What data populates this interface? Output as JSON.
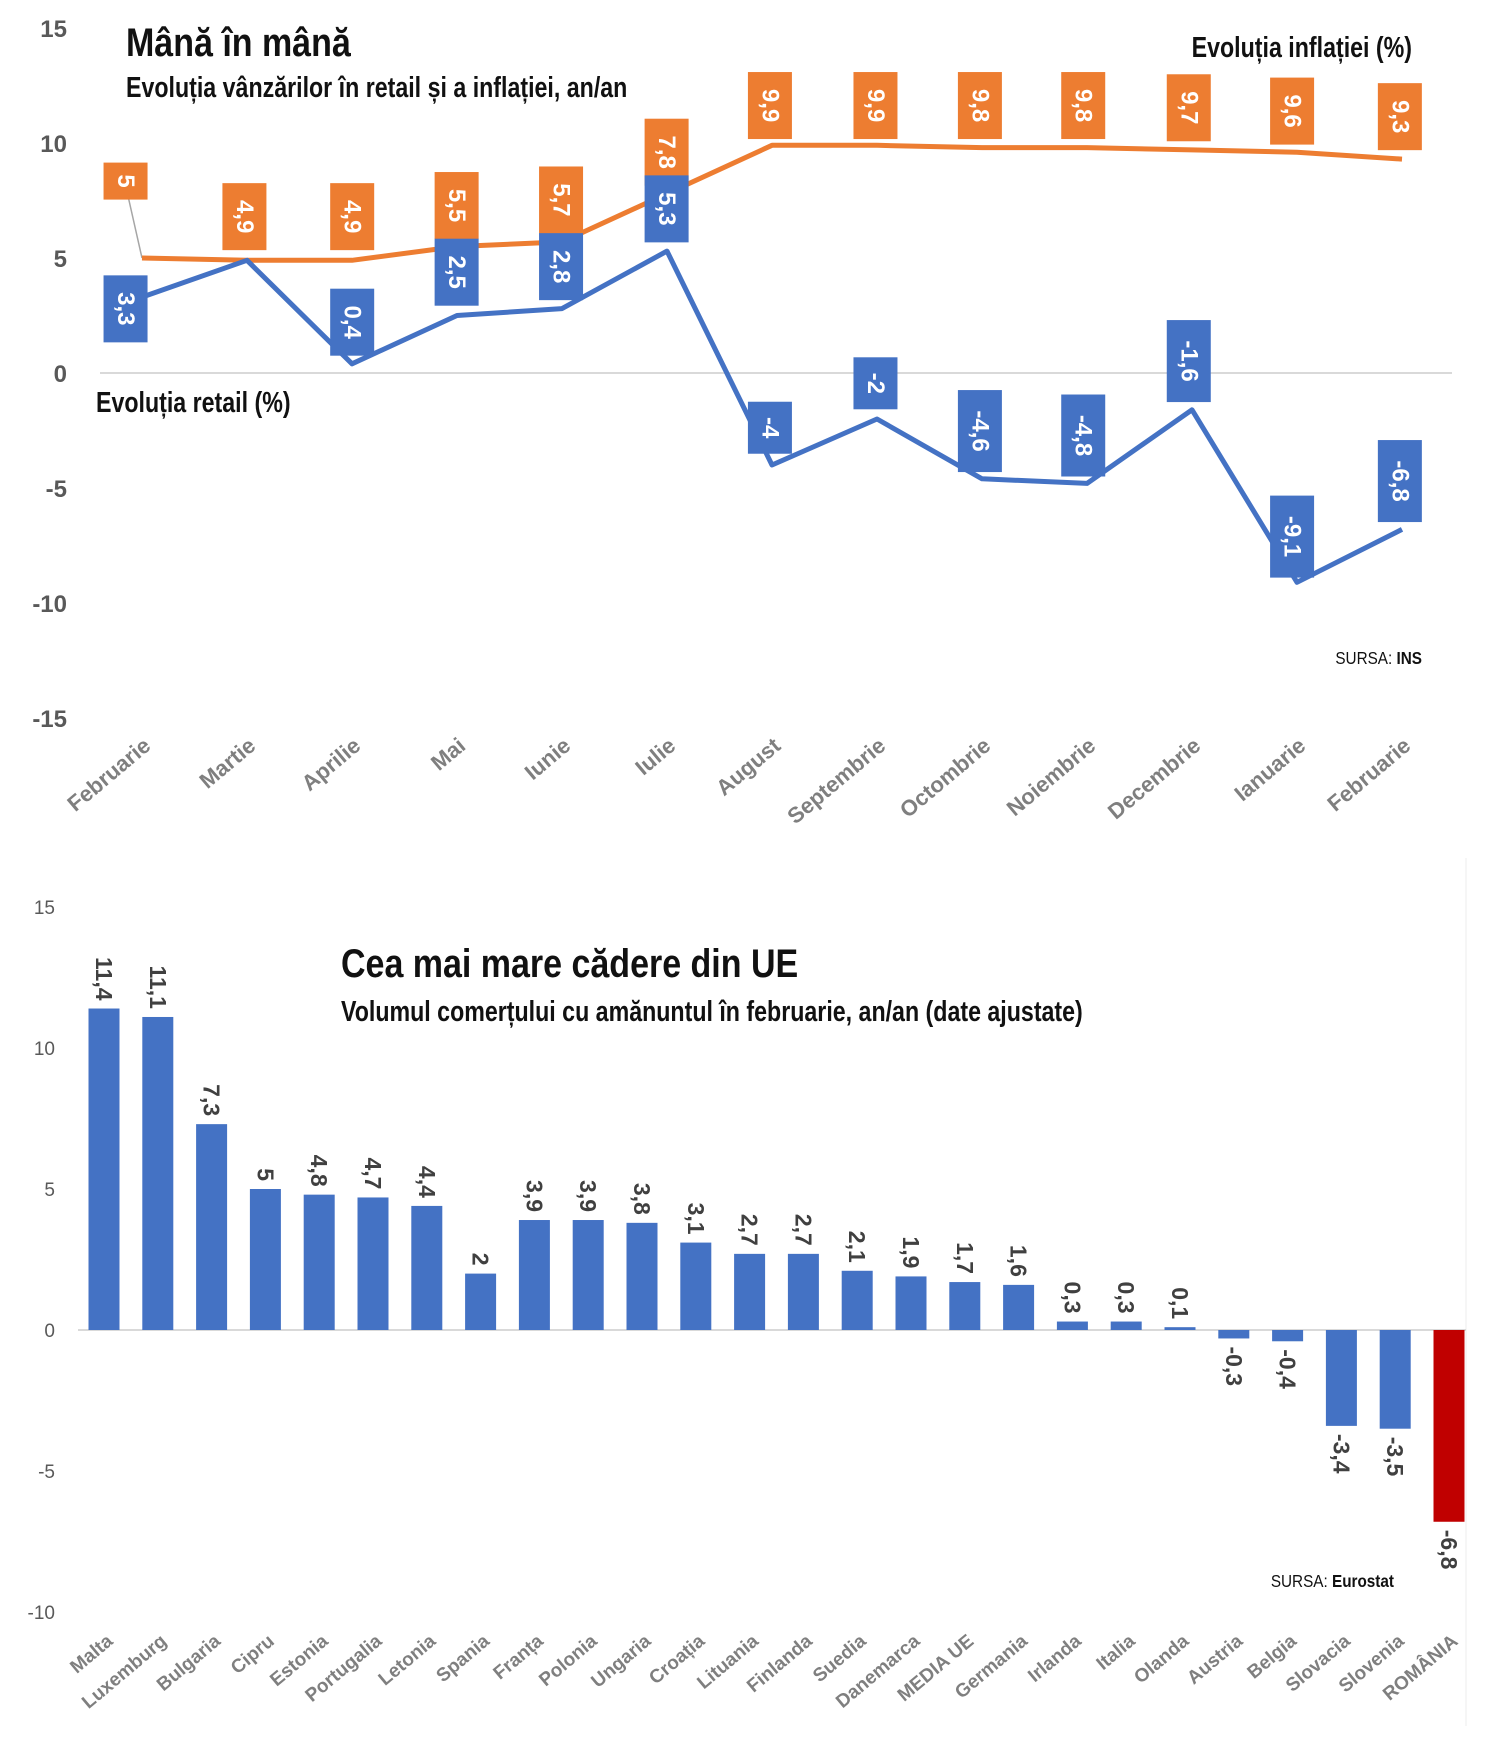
{
  "chart_data": [
    {
      "type": "line",
      "title": "Mână în mână",
      "subtitle": "Evoluția vânzărilor în retail și a inflației, an/an",
      "source_label": "SURSA:",
      "source": "INS",
      "categories": [
        "Februarie",
        "Martie",
        "Aprilie",
        "Mai",
        "Iunie",
        "Iulie",
        "August",
        "Septembrie",
        "Octombrie",
        "Noiembrie",
        "Decembrie",
        "Ianuarie",
        "Februarie"
      ],
      "ylim": [
        -15,
        15
      ],
      "yticks": [
        "15",
        "10",
        "5",
        "0",
        "-5",
        "-10",
        "-15"
      ],
      "grid": false,
      "series": [
        {
          "name": "Evoluția inflației (%)",
          "color": "#ED7D31",
          "values": [
            5,
            4.9,
            4.9,
            5.5,
            5.7,
            7.8,
            9.9,
            9.9,
            9.8,
            9.8,
            9.7,
            9.6,
            9.3
          ],
          "labels": [
            "5",
            "4,9",
            "4,9",
            "5,5",
            "5,7",
            "7,8",
            "9,9",
            "9,9",
            "9,8",
            "9,8",
            "9,7",
            "9,6",
            "9,3"
          ]
        },
        {
          "name": "Evoluția retail (%)",
          "color": "#4472C4",
          "values": [
            3.3,
            4.9,
            0.4,
            2.5,
            2.8,
            5.3,
            -4,
            -2,
            -4.6,
            -4.8,
            -1.6,
            -9.1,
            -6.8
          ],
          "labels": [
            "3,3",
            "",
            "0,4",
            "2,5",
            "2,8",
            "5,3",
            "-4",
            "-2",
            "-4,6",
            "-4,8",
            "-1,6",
            "-9,1",
            "-6,8"
          ]
        }
      ]
    },
    {
      "type": "bar",
      "title": "Cea mai mare cădere din UE",
      "subtitle": "Volumul comerțului cu amănuntul în februarie, an/an (date ajustate)",
      "source_label": "SURSA:",
      "source": "Eurostat",
      "categories": [
        "Malta",
        "Luxemburg",
        "Bulgaria",
        "Cipru",
        "Estonia",
        "Portugalia",
        "Letonia",
        "Spania",
        "Franța",
        "Polonia",
        "Ungaria",
        "Croația",
        "Lituania",
        "Finlanda",
        "Suedia",
        "Danemarca",
        "MEDIA UE",
        "Germania",
        "Irlanda",
        "Italia",
        "Olanda",
        "Austria",
        "Belgia",
        "Slovacia",
        "Slovenia",
        "ROMÂNIA"
      ],
      "values": [
        11.4,
        11.1,
        7.3,
        5,
        4.8,
        4.7,
        4.4,
        2,
        3.9,
        3.9,
        3.8,
        3.1,
        2.7,
        2.7,
        2.1,
        1.9,
        1.7,
        1.6,
        0.3,
        0.3,
        0.1,
        -0.3,
        -0.4,
        -3.4,
        -3.5,
        -6.8
      ],
      "labels": [
        "11,4",
        "11,1",
        "7,3",
        "5",
        "4,8",
        "4,7",
        "4,4",
        "2",
        "3,9",
        "3,9",
        "3,8",
        "3,1",
        "2,7",
        "2,7",
        "2,1",
        "1,9",
        "1,7",
        "1,6",
        "0,3",
        "0,3",
        "0,1",
        "-0,3",
        "-0,4",
        "-3,4",
        "-3,5",
        "-6,8"
      ],
      "highlight": "ROMÂNIA",
      "colors": {
        "default": "#4472C4",
        "highlight": "#C00000"
      },
      "ylim": [
        -10,
        15
      ],
      "yticks": [
        "15",
        "10",
        "5",
        "0",
        "-5",
        "-10"
      ],
      "grid": false
    }
  ]
}
